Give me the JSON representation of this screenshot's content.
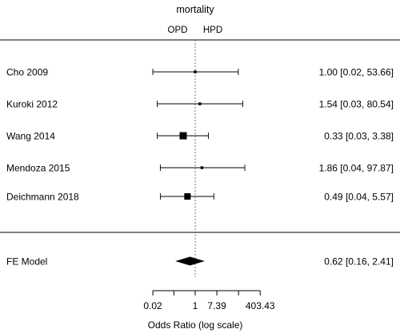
{
  "chart_data": {
    "type": "forest",
    "title": "mortality",
    "left_label": "OPD",
    "right_label": "HPD",
    "xlabel": "Odds Ratio (log scale)",
    "x_scale": "log",
    "x_ticks": [
      0.02,
      0.14,
      1,
      7.39,
      54.6,
      403.43
    ],
    "x_tick_labels": [
      "0.02",
      "",
      "1",
      "7.39",
      "",
      "403.43"
    ],
    "reference_line": 1,
    "studies": [
      {
        "label": "Cho 2009",
        "or": 1.0,
        "lower": 0.02,
        "upper": 53.66,
        "ci_text": "1.00 [0.02, 53.66]",
        "weight": 1
      },
      {
        "label": "Kuroki 2012",
        "or": 1.54,
        "lower": 0.03,
        "upper": 80.54,
        "ci_text": "1.54 [0.03, 80.54]",
        "weight": 1
      },
      {
        "label": "Wang 2014",
        "or": 0.33,
        "lower": 0.03,
        "upper": 3.38,
        "ci_text": "0.33 [0.03,  3.38]",
        "weight": 4
      },
      {
        "label": "Mendoza 2015",
        "or": 1.86,
        "lower": 0.04,
        "upper": 97.87,
        "ci_text": "1.86 [0.04, 97.87]",
        "weight": 1
      },
      {
        "label": "Deichmann 2018",
        "or": 0.49,
        "lower": 0.04,
        "upper": 5.57,
        "ci_text": "0.49 [0.04,  5.57]",
        "weight": 3
      }
    ],
    "summary": {
      "label": "FE Model",
      "or": 0.62,
      "lower": 0.16,
      "upper": 2.41,
      "ci_text": "0.62 [0.16,  2.41]"
    }
  }
}
